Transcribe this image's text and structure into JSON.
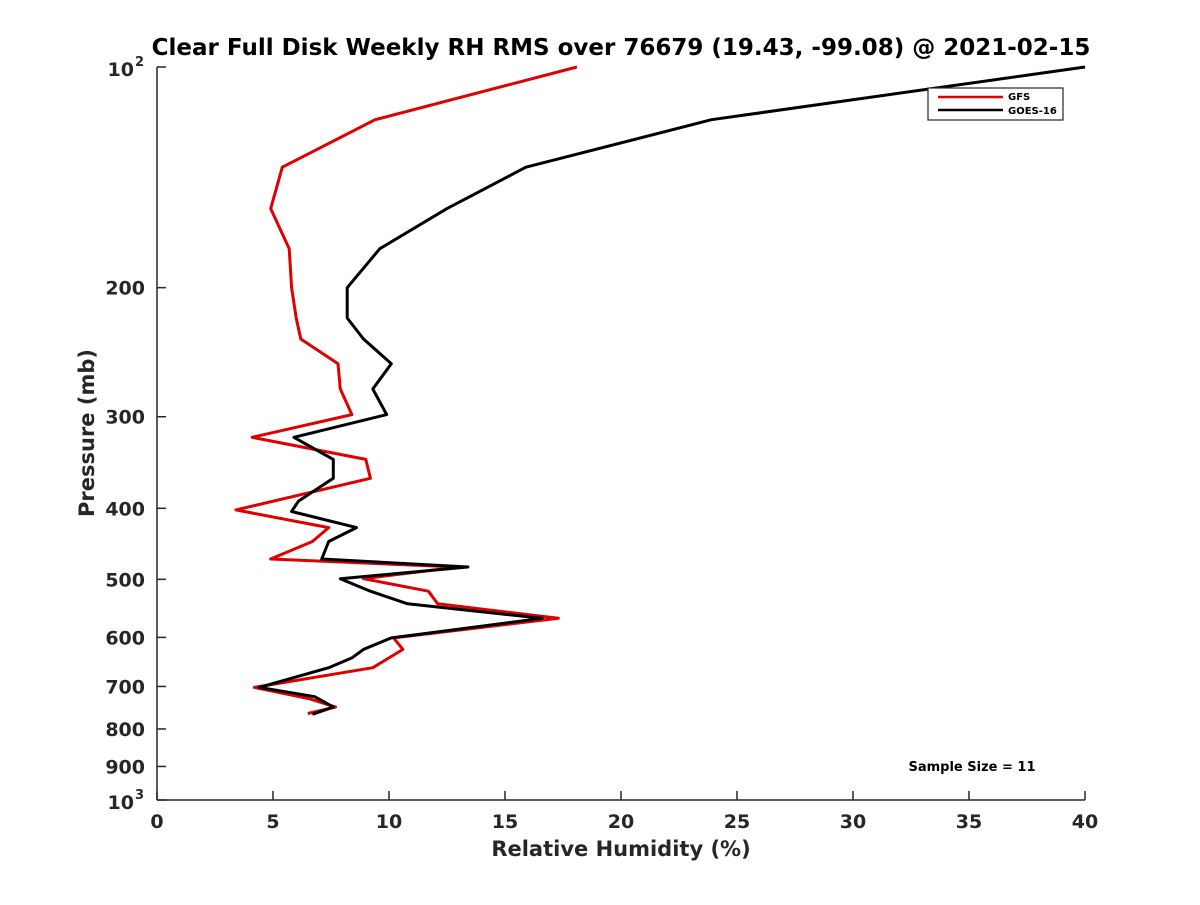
{
  "chart_data": {
    "type": "line",
    "title": "Clear Full Disk Weekly RH RMS over 76679 (19.43, -99.08) @ 2021-02-15",
    "xlabel": "Relative Humidity (%)",
    "ylabel": "Pressure (mb)",
    "xlim": [
      0,
      40
    ],
    "ylim": [
      100,
      1000
    ],
    "y_scale": "log",
    "y_reversed": true,
    "grid": false,
    "legend_position": "top-right",
    "x_ticks": [
      "0",
      "5",
      "10",
      "15",
      "20",
      "25",
      "30",
      "35",
      "40"
    ],
    "y_ticks": [
      {
        "value": 100,
        "label": "10",
        "exponent": "2"
      },
      {
        "value": 200,
        "label": "200"
      },
      {
        "value": 300,
        "label": "300"
      },
      {
        "value": 400,
        "label": "400"
      },
      {
        "value": 500,
        "label": "500"
      },
      {
        "value": 600,
        "label": "600"
      },
      {
        "value": 700,
        "label": "700"
      },
      {
        "value": 800,
        "label": "800"
      },
      {
        "value": 900,
        "label": "900"
      },
      {
        "value": 1000,
        "label": "10",
        "exponent": "3"
      }
    ],
    "series": [
      {
        "name": "GFS",
        "color": "#e00000",
        "points": [
          [
            18.1,
            100
          ],
          [
            9.4,
            118
          ],
          [
            5.4,
            137
          ],
          [
            4.9,
            156
          ],
          [
            5.7,
            177
          ],
          [
            5.8,
            200
          ],
          [
            6.0,
            220
          ],
          [
            6.2,
            235
          ],
          [
            7.8,
            254
          ],
          [
            7.9,
            275
          ],
          [
            8.4,
            298
          ],
          [
            4.1,
            320
          ],
          [
            9.0,
            343
          ],
          [
            9.2,
            364
          ],
          [
            3.4,
            402
          ],
          [
            7.4,
            425
          ],
          [
            6.7,
            444
          ],
          [
            4.9,
            469
          ],
          [
            13.0,
            481
          ],
          [
            8.9,
            499
          ],
          [
            11.7,
            519
          ],
          [
            12.1,
            540
          ],
          [
            17.3,
            565
          ],
          [
            10.2,
            601
          ],
          [
            10.6,
            623
          ],
          [
            9.3,
            660
          ],
          [
            4.2,
            702
          ],
          [
            6.6,
            728
          ],
          [
            7.7,
            747
          ],
          [
            6.5,
            762
          ]
        ]
      },
      {
        "name": "GOES-16",
        "color": "#000000",
        "points": [
          [
            40.0,
            100
          ],
          [
            23.9,
            118
          ],
          [
            15.9,
            137
          ],
          [
            12.5,
            156
          ],
          [
            9.6,
            177
          ],
          [
            8.2,
            200
          ],
          [
            8.2,
            220
          ],
          [
            8.9,
            235
          ],
          [
            10.1,
            254
          ],
          [
            9.3,
            275
          ],
          [
            9.9,
            298
          ],
          [
            5.9,
            320
          ],
          [
            7.6,
            343
          ],
          [
            7.6,
            364
          ],
          [
            6.1,
            391
          ],
          [
            5.8,
            404
          ],
          [
            8.6,
            425
          ],
          [
            7.4,
            444
          ],
          [
            7.1,
            469
          ],
          [
            13.4,
            481
          ],
          [
            7.9,
            499
          ],
          [
            9.2,
            519
          ],
          [
            10.8,
            540
          ],
          [
            16.6,
            565
          ],
          [
            10.1,
            601
          ],
          [
            8.9,
            623
          ],
          [
            8.4,
            640
          ],
          [
            7.4,
            660
          ],
          [
            4.4,
            702
          ],
          [
            6.8,
            723
          ],
          [
            7.6,
            747
          ],
          [
            6.7,
            764
          ]
        ]
      }
    ],
    "annotation": "Sample Size = 11"
  }
}
